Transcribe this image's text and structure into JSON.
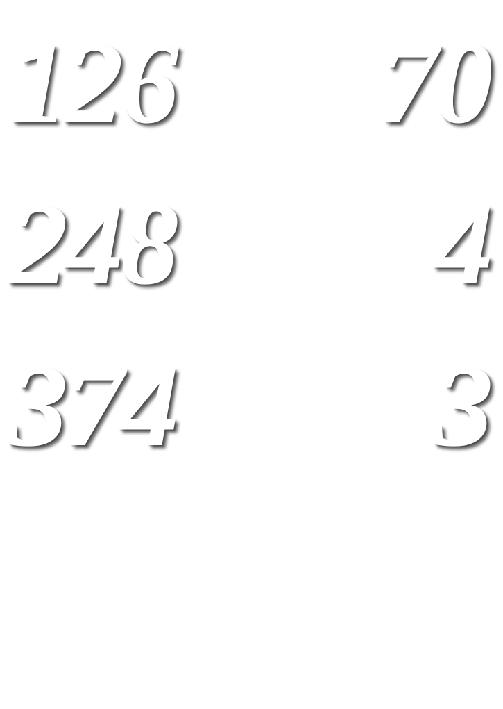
{
  "rows": [
    {
      "left": "126",
      "right": "70"
    },
    {
      "left": "248",
      "right": "4"
    },
    {
      "left": "374",
      "right": "3"
    }
  ]
}
